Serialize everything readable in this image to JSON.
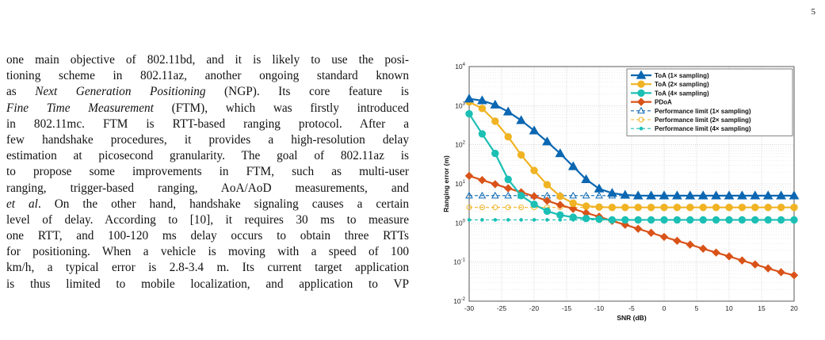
{
  "page_number": "5",
  "body_lines": [
    [
      {
        "t": "one main objective of 802.11bd, and it is likely to use the posi-"
      }
    ],
    [
      {
        "t": "tioning scheme in 802.11az, another ongoing standard known"
      }
    ],
    [
      {
        "t": "as "
      },
      {
        "t": "Next Generation Positioning",
        "i": true
      },
      {
        "t": " (NGP). Its core feature is"
      }
    ],
    [
      {
        "t": "Fine Time Measurement",
        "i": true
      },
      {
        "t": " (FTM), which was firstly introduced"
      }
    ],
    [
      {
        "t": "in 802.11mc. FTM is RTT-based ranging protocol. After a"
      }
    ],
    [
      {
        "t": "few handshake procedures, it provides a high-resolution delay"
      }
    ],
    [
      {
        "t": "estimation at picosecond granularity. The goal of 802.11az is"
      }
    ],
    [
      {
        "t": "to propose some improvements in FTM, such as multi-user"
      }
    ],
    [
      {
        "t": "ranging, trigger-based ranging, AoA/AoD measurements, and"
      }
    ],
    [
      {
        "t": "et al",
        "i": true
      },
      {
        "t": ". On the other hand, handshake signaling causes a certain"
      }
    ],
    [
      {
        "t": "level of delay. According to [10], it requires 30 ms to measure"
      }
    ],
    [
      {
        "t": "one RTT, and 100-120 ms delay occurs to obtain three RTTs"
      }
    ],
    [
      {
        "t": "for positioning. When a vehicle is moving with a speed of 100"
      }
    ],
    [
      {
        "t": "km/h, a typical error is 2.8-3.4 m. Its current target application"
      }
    ],
    [
      {
        "t": "is thus limited to mobile localization, and application to VP"
      }
    ]
  ],
  "chart_data": {
    "type": "line",
    "title": "",
    "xlabel": "SNR (dB)",
    "ylabel": "Ranging error (m)",
    "xlim": [
      -30,
      20
    ],
    "ylim": [
      0.01,
      10000
    ],
    "yscale": "log",
    "grid": true,
    "legend_position": "top-right",
    "x_ticks": [
      "-30",
      "-25",
      "-20",
      "-15",
      "-10",
      "-5",
      "0",
      "5",
      "10",
      "15",
      "20"
    ],
    "y_ticks": [
      {
        "v": 0.01,
        "base": "10",
        "exp": "-2"
      },
      {
        "v": 0.1,
        "base": "10",
        "exp": "-1"
      },
      {
        "v": 1,
        "base": "10",
        "exp": "0"
      },
      {
        "v": 10,
        "base": "10",
        "exp": "1"
      },
      {
        "v": 100,
        "base": "10",
        "exp": "2"
      },
      {
        "v": 1000,
        "base": "10",
        "exp": "3"
      },
      {
        "v": 10000,
        "base": "10",
        "exp": "4"
      }
    ],
    "x": [
      -30,
      -28,
      -26,
      -24,
      -22,
      -20,
      -18,
      -16,
      -14,
      -12,
      -10,
      -8,
      -6,
      -4,
      -2,
      0,
      2,
      4,
      6,
      8,
      10,
      12,
      14,
      16,
      18,
      20
    ],
    "series": [
      {
        "name": "ToA (1× sampling)",
        "color": "#0b67b2",
        "marker": "triangle-filled",
        "linestyle": "solid",
        "width": 2.2,
        "values": [
          1500,
          1350,
          1050,
          700,
          420,
          230,
          120,
          60,
          28,
          13,
          7.5,
          5.8,
          5.2,
          5.0,
          5.0,
          5.0,
          5.0,
          5.0,
          5.0,
          5.0,
          5.0,
          5.0,
          5.0,
          5.0,
          5.0,
          5.0
        ]
      },
      {
        "name": "ToA (2× sampling)",
        "color": "#f0b323",
        "marker": "circle-filled",
        "linestyle": "solid",
        "width": 2.2,
        "values": [
          1250,
          850,
          400,
          160,
          55,
          22,
          9.5,
          4.8,
          3.2,
          2.7,
          2.55,
          2.5,
          2.5,
          2.5,
          2.5,
          2.5,
          2.5,
          2.5,
          2.5,
          2.5,
          2.5,
          2.5,
          2.5,
          2.5,
          2.5,
          2.5
        ]
      },
      {
        "name": "ToA (4× sampling)",
        "color": "#1bbfb4",
        "marker": "circle-filled",
        "linestyle": "solid",
        "width": 2.2,
        "values": [
          620,
          190,
          60,
          13,
          5.0,
          3.0,
          2.0,
          1.6,
          1.4,
          1.3,
          1.25,
          1.2,
          1.2,
          1.2,
          1.2,
          1.2,
          1.2,
          1.2,
          1.2,
          1.2,
          1.2,
          1.2,
          1.2,
          1.2,
          1.2,
          1.2
        ]
      },
      {
        "name": "PDoA",
        "color": "#d95319",
        "marker": "diamond-filled",
        "linestyle": "solid",
        "width": 2.2,
        "values": [
          16,
          12.5,
          9.8,
          7.7,
          6.1,
          4.8,
          3.7,
          2.9,
          2.3,
          1.8,
          1.45,
          1.13,
          0.9,
          0.71,
          0.56,
          0.44,
          0.35,
          0.28,
          0.22,
          0.175,
          0.14,
          0.11,
          0.087,
          0.069,
          0.055,
          0.046
        ]
      },
      {
        "name": "Performance limit (1× sampling)",
        "color": "#0b67b2",
        "marker": "triangle-open",
        "linestyle": "dashed",
        "width": 1.1,
        "values": [
          5.0,
          5.0,
          5.0,
          5.0,
          5.0,
          5.0,
          5.0,
          5.0,
          5.0,
          5.0,
          5.0,
          5.0,
          5.0,
          5.0,
          5.0,
          5.0,
          5.0,
          5.0,
          5.0,
          5.0,
          5.0,
          5.0,
          5.0,
          5.0,
          5.0,
          5.0
        ]
      },
      {
        "name": "Performance limit (2× sampling)",
        "color": "#f0b323",
        "marker": "circle-open",
        "linestyle": "dashed",
        "width": 1.1,
        "values": [
          2.5,
          2.5,
          2.5,
          2.5,
          2.5,
          2.5,
          2.5,
          2.5,
          2.5,
          2.5,
          2.5,
          2.5,
          2.5,
          2.5,
          2.5,
          2.5,
          2.5,
          2.5,
          2.5,
          2.5,
          2.5,
          2.5,
          2.5,
          2.5,
          2.5,
          2.5
        ]
      },
      {
        "name": "Performance limit (4× sampling)",
        "color": "#1bbfb4",
        "marker": "dot",
        "linestyle": "dashed",
        "width": 1.1,
        "values": [
          1.2,
          1.2,
          1.2,
          1.2,
          1.2,
          1.2,
          1.2,
          1.2,
          1.2,
          1.2,
          1.2,
          1.2,
          1.2,
          1.2,
          1.2,
          1.2,
          1.2,
          1.2,
          1.2,
          1.2,
          1.2,
          1.2,
          1.2,
          1.2,
          1.2,
          1.2
        ]
      }
    ]
  }
}
